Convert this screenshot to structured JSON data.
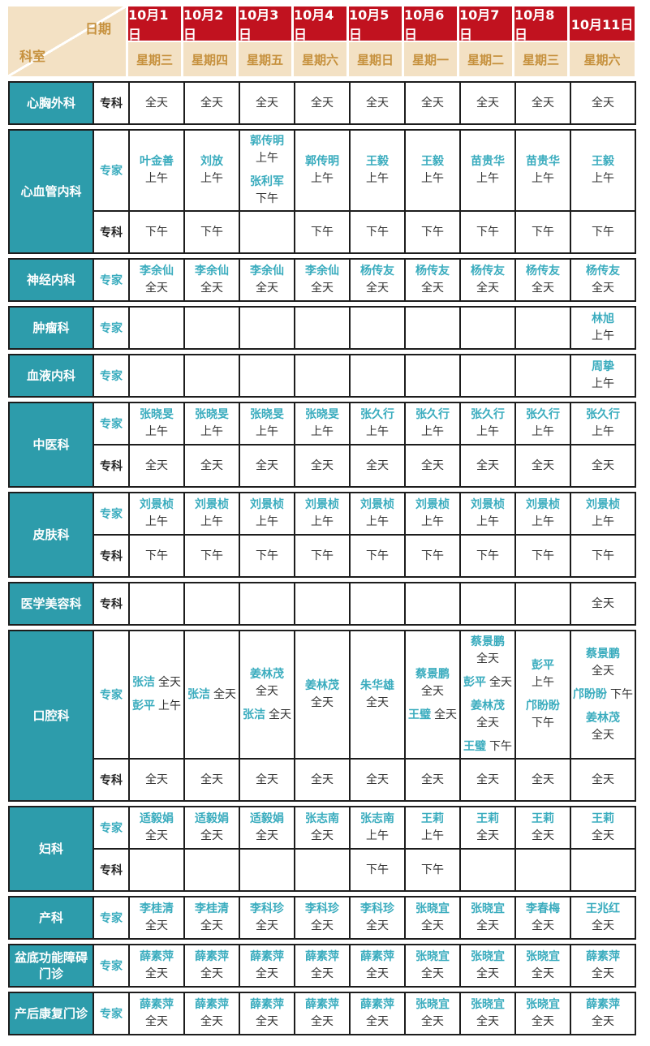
{
  "colors": {
    "department_teal": "#2d9cab",
    "date_red": "#c1121f",
    "header_beige": "#f3e1c4",
    "header_gold_text": "#c6913e",
    "doctor_name_teal": "#3aacbe",
    "time_text": "#333333",
    "grid_border": "#1d1d1d"
  },
  "header": {
    "corner_top": "日期",
    "corner_bottom": "科室",
    "columns": [
      {
        "date": "10月1日",
        "weekday": "星期三"
      },
      {
        "date": "10月2日",
        "weekday": "星期四"
      },
      {
        "date": "10月3日",
        "weekday": "星期五"
      },
      {
        "date": "10月4日",
        "weekday": "星期六"
      },
      {
        "date": "10月5日",
        "weekday": "星期日"
      },
      {
        "date": "10月6日",
        "weekday": "星期一"
      },
      {
        "date": "10月7日",
        "weekday": "星期二"
      },
      {
        "date": "10月8日",
        "weekday": "星期三"
      },
      {
        "date": "10月11日",
        "weekday": "星期六"
      }
    ]
  },
  "departments": [
    {
      "name": "心胸外科",
      "rows": [
        {
          "type": "专科",
          "cells": [
            [
              {
                "time": "全天"
              }
            ],
            [
              {
                "time": "全天"
              }
            ],
            [
              {
                "time": "全天"
              }
            ],
            [
              {
                "time": "全天"
              }
            ],
            [
              {
                "time": "全天"
              }
            ],
            [
              {
                "time": "全天"
              }
            ],
            [
              {
                "time": "全天"
              }
            ],
            [
              {
                "time": "全天"
              }
            ],
            [
              {
                "time": "全天"
              }
            ]
          ]
        }
      ]
    },
    {
      "name": "心血管内科",
      "rows": [
        {
          "type": "专家",
          "cells": [
            [
              {
                "name": "叶金善",
                "time": "上午"
              }
            ],
            [
              {
                "name": "刘放",
                "time": "上午"
              }
            ],
            [
              {
                "name": "郭传明",
                "time": "上午"
              },
              {
                "name": "张利军",
                "time": "下午"
              }
            ],
            [
              {
                "name": "郭传明",
                "time": "上午"
              }
            ],
            [
              {
                "name": "王毅",
                "time": "上午"
              }
            ],
            [
              {
                "name": "王毅",
                "time": "上午"
              }
            ],
            [
              {
                "name": "苗贵华",
                "time": "上午"
              }
            ],
            [
              {
                "name": "苗贵华",
                "time": "上午"
              }
            ],
            [
              {
                "name": "王毅",
                "time": "上午"
              }
            ]
          ]
        },
        {
          "type": "专科",
          "cells": [
            [
              {
                "time": "下午"
              }
            ],
            [
              {
                "time": "下午"
              }
            ],
            [],
            [
              {
                "time": "下午"
              }
            ],
            [
              {
                "time": "下午"
              }
            ],
            [
              {
                "time": "下午"
              }
            ],
            [
              {
                "time": "下午"
              }
            ],
            [
              {
                "time": "下午"
              }
            ],
            [
              {
                "time": "下午"
              }
            ]
          ]
        }
      ]
    },
    {
      "name": "神经内科",
      "rows": [
        {
          "type": "专家",
          "cells": [
            [
              {
                "name": "李余仙",
                "time": "全天"
              }
            ],
            [
              {
                "name": "李余仙",
                "time": "全天"
              }
            ],
            [
              {
                "name": "李余仙",
                "time": "全天"
              }
            ],
            [
              {
                "name": "李余仙",
                "time": "全天"
              }
            ],
            [
              {
                "name": "杨传友",
                "time": "全天"
              }
            ],
            [
              {
                "name": "杨传友",
                "time": "全天"
              }
            ],
            [
              {
                "name": "杨传友",
                "time": "全天"
              }
            ],
            [
              {
                "name": "杨传友",
                "time": "全天"
              }
            ],
            [
              {
                "name": "杨传友",
                "time": "全天"
              }
            ]
          ]
        }
      ]
    },
    {
      "name": "肿瘤科",
      "rows": [
        {
          "type": "专家",
          "cells": [
            [],
            [],
            [],
            [],
            [],
            [],
            [],
            [],
            [
              {
                "name": "林旭",
                "time": "上午"
              }
            ]
          ]
        }
      ]
    },
    {
      "name": "血液内科",
      "rows": [
        {
          "type": "专家",
          "cells": [
            [],
            [],
            [],
            [],
            [],
            [],
            [],
            [],
            [
              {
                "name": "周挚",
                "time": "上午"
              }
            ]
          ]
        }
      ]
    },
    {
      "name": "中医科",
      "rows": [
        {
          "type": "专家",
          "cells": [
            [
              {
                "name": "张晓旻",
                "time": "上午"
              }
            ],
            [
              {
                "name": "张晓旻",
                "time": "上午"
              }
            ],
            [
              {
                "name": "张晓旻",
                "time": "上午"
              }
            ],
            [
              {
                "name": "张晓旻",
                "time": "上午"
              }
            ],
            [
              {
                "name": "张久行",
                "time": "上午"
              }
            ],
            [
              {
                "name": "张久行",
                "time": "上午"
              }
            ],
            [
              {
                "name": "张久行",
                "time": "上午"
              }
            ],
            [
              {
                "name": "张久行",
                "time": "上午"
              }
            ],
            [
              {
                "name": "张久行",
                "time": "上午"
              }
            ]
          ]
        },
        {
          "type": "专科",
          "cells": [
            [
              {
                "time": "全天"
              }
            ],
            [
              {
                "time": "全天"
              }
            ],
            [
              {
                "time": "全天"
              }
            ],
            [
              {
                "time": "全天"
              }
            ],
            [
              {
                "time": "全天"
              }
            ],
            [
              {
                "time": "全天"
              }
            ],
            [
              {
                "time": "全天"
              }
            ],
            [
              {
                "time": "全天"
              }
            ],
            [
              {
                "time": "全天"
              }
            ]
          ]
        }
      ]
    },
    {
      "name": "皮肤科",
      "rows": [
        {
          "type": "专家",
          "cells": [
            [
              {
                "name": "刘景桢",
                "time": "上午"
              }
            ],
            [
              {
                "name": "刘景桢",
                "time": "上午"
              }
            ],
            [
              {
                "name": "刘景桢",
                "time": "上午"
              }
            ],
            [
              {
                "name": "刘景桢",
                "time": "上午"
              }
            ],
            [
              {
                "name": "刘景桢",
                "time": "上午"
              }
            ],
            [
              {
                "name": "刘景桢",
                "time": "上午"
              }
            ],
            [
              {
                "name": "刘景桢",
                "time": "上午"
              }
            ],
            [
              {
                "name": "刘景桢",
                "time": "上午"
              }
            ],
            [
              {
                "name": "刘景桢",
                "time": "上午"
              }
            ]
          ]
        },
        {
          "type": "专科",
          "cells": [
            [
              {
                "time": "下午"
              }
            ],
            [
              {
                "time": "下午"
              }
            ],
            [
              {
                "time": "下午"
              }
            ],
            [
              {
                "time": "下午"
              }
            ],
            [
              {
                "time": "下午"
              }
            ],
            [
              {
                "time": "下午"
              }
            ],
            [
              {
                "time": "下午"
              }
            ],
            [
              {
                "time": "下午"
              }
            ],
            [
              {
                "time": "下午"
              }
            ]
          ]
        }
      ]
    },
    {
      "name": "医学美容科",
      "rows": [
        {
          "type": "专科",
          "cells": [
            [],
            [],
            [],
            [],
            [],
            [],
            [],
            [],
            [
              {
                "time": "全天"
              }
            ]
          ]
        }
      ]
    },
    {
      "name": "口腔科",
      "rows": [
        {
          "type": "专家",
          "cells": [
            [
              {
                "name": "张洁",
                "time": "全天",
                "inline": true
              },
              {
                "name": "彭平",
                "time": "上午",
                "inline": true
              }
            ],
            [
              {
                "name": "张洁",
                "time": "全天",
                "inline": true
              }
            ],
            [
              {
                "name": "姜林茂",
                "time": "全天"
              },
              {
                "name": "张洁",
                "time": "全天",
                "inline": true
              }
            ],
            [
              {
                "name": "姜林茂",
                "time": "全天"
              }
            ],
            [
              {
                "name": "朱华雄",
                "time": "全天"
              }
            ],
            [
              {
                "name": "蔡景鹏",
                "time": "全天"
              },
              {
                "name": "王璧",
                "time": "全天",
                "inline": true
              }
            ],
            [
              {
                "name": "蔡景鹏",
                "time": "全天"
              },
              {
                "name": "彭平",
                "time": "全天",
                "inline": true
              },
              {
                "name": "姜林茂",
                "time": "全天"
              },
              {
                "name": "王璧",
                "time": "下午",
                "inline": true
              }
            ],
            [
              {
                "name": "彭平",
                "time": "上午"
              },
              {
                "name": "邝盼盼",
                "time": "下午"
              }
            ],
            [
              {
                "name": "蔡景鹏",
                "time": "全天"
              },
              {
                "name": "邝盼盼",
                "time": "下午",
                "inline": true
              },
              {
                "name": "姜林茂",
                "time": "全天"
              }
            ]
          ]
        },
        {
          "type": "专科",
          "cells": [
            [
              {
                "time": "全天"
              }
            ],
            [
              {
                "time": "全天"
              }
            ],
            [
              {
                "time": "全天"
              }
            ],
            [
              {
                "time": "全天"
              }
            ],
            [
              {
                "time": "全天"
              }
            ],
            [
              {
                "time": "全天"
              }
            ],
            [
              {
                "time": "全天"
              }
            ],
            [
              {
                "time": "全天"
              }
            ],
            [
              {
                "time": "全天"
              }
            ]
          ]
        }
      ]
    },
    {
      "name": "妇科",
      "rows": [
        {
          "type": "专家",
          "cells": [
            [
              {
                "name": "适毅娟",
                "time": "全天"
              }
            ],
            [
              {
                "name": "适毅娟",
                "time": "全天"
              }
            ],
            [
              {
                "name": "适毅娟",
                "time": "全天"
              }
            ],
            [
              {
                "name": "张志南",
                "time": "全天"
              }
            ],
            [
              {
                "name": "张志南",
                "time": "上午"
              }
            ],
            [
              {
                "name": "王莉",
                "time": "上午"
              }
            ],
            [
              {
                "name": "王莉",
                "time": "全天"
              }
            ],
            [
              {
                "name": "王莉",
                "time": "全天"
              }
            ],
            [
              {
                "name": "王莉",
                "time": "全天"
              }
            ]
          ]
        },
        {
          "type": "专科",
          "cells": [
            [],
            [],
            [],
            [],
            [
              {
                "time": "下午"
              }
            ],
            [
              {
                "time": "下午"
              }
            ],
            [],
            [],
            []
          ]
        }
      ]
    },
    {
      "name": "产科",
      "rows": [
        {
          "type": "专家",
          "cells": [
            [
              {
                "name": "李桂清",
                "time": "全天"
              }
            ],
            [
              {
                "name": "李桂清",
                "time": "全天"
              }
            ],
            [
              {
                "name": "李科珍",
                "time": "全天"
              }
            ],
            [
              {
                "name": "李科珍",
                "time": "全天"
              }
            ],
            [
              {
                "name": "李科珍",
                "time": "全天"
              }
            ],
            [
              {
                "name": "张晓宜",
                "time": "全天"
              }
            ],
            [
              {
                "name": "张晓宜",
                "time": "全天"
              }
            ],
            [
              {
                "name": "李春梅",
                "time": "全天"
              }
            ],
            [
              {
                "name": "王兆红",
                "time": "全天"
              }
            ]
          ]
        }
      ]
    },
    {
      "name": "盆底功能障碍门诊",
      "rows": [
        {
          "type": "专家",
          "cells": [
            [
              {
                "name": "薛素萍",
                "time": "全天"
              }
            ],
            [
              {
                "name": "薛素萍",
                "time": "全天"
              }
            ],
            [
              {
                "name": "薛素萍",
                "time": "全天"
              }
            ],
            [
              {
                "name": "薛素萍",
                "time": "全天"
              }
            ],
            [
              {
                "name": "薛素萍",
                "time": "全天"
              }
            ],
            [
              {
                "name": "张晓宜",
                "time": "全天"
              }
            ],
            [
              {
                "name": "张晓宜",
                "time": "全天"
              }
            ],
            [
              {
                "name": "张晓宜",
                "time": "全天"
              }
            ],
            [
              {
                "name": "薛素萍",
                "time": "全天"
              }
            ]
          ]
        }
      ]
    },
    {
      "name": "产后康复门诊",
      "rows": [
        {
          "type": "专家",
          "cells": [
            [
              {
                "name": "薛素萍",
                "time": "全天"
              }
            ],
            [
              {
                "name": "薛素萍",
                "time": "全天"
              }
            ],
            [
              {
                "name": "薛素萍",
                "time": "全天"
              }
            ],
            [
              {
                "name": "薛素萍",
                "time": "全天"
              }
            ],
            [
              {
                "name": "薛素萍",
                "time": "全天"
              }
            ],
            [
              {
                "name": "张晓宜",
                "time": "全天"
              }
            ],
            [
              {
                "name": "张晓宜",
                "time": "全天"
              }
            ],
            [
              {
                "name": "张晓宜",
                "time": "全天"
              }
            ],
            [
              {
                "name": "薛素萍",
                "time": "全天"
              }
            ]
          ]
        }
      ]
    }
  ]
}
